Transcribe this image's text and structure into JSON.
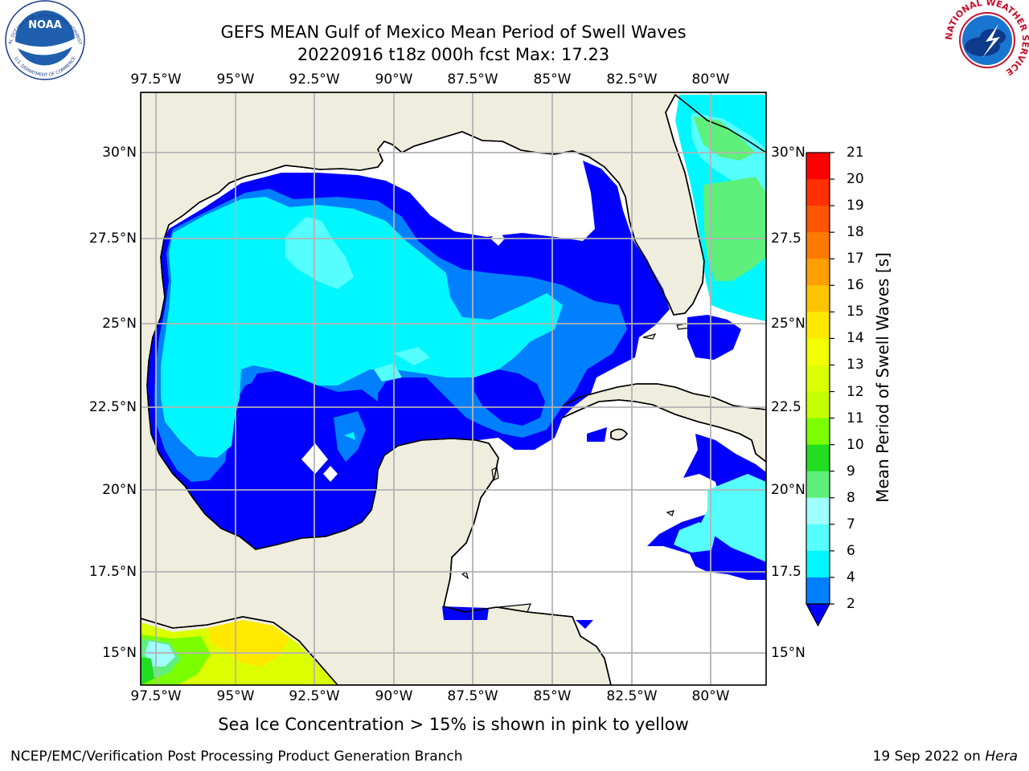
{
  "title": {
    "line1": "GEFS MEAN Gulf of Mexico Mean Period of Swell Waves",
    "line2": "20220916 t18z 000h fcst   Max: 17.23"
  },
  "map": {
    "lon_ticks": [
      "97.5°W",
      "95°W",
      "92.5°W",
      "90°W",
      "87.5°W",
      "85°W",
      "82.5°W",
      "80°W"
    ],
    "lat_ticks_left": [
      "30°N",
      "27.5°N",
      "25°N",
      "22.5°N",
      "20°N",
      "17.5°N",
      "15°N"
    ],
    "lat_ticks_right": [
      "30°N",
      "27.5",
      "25°N",
      "22.5",
      "20°N",
      "17.5",
      "15°N"
    ],
    "land_color": "#efedde",
    "ocean_nodata_color": "#ffffff",
    "gridline_color": "#b3b3b3"
  },
  "colorbar": {
    "label": "Mean Period of Swell Waves [s]",
    "ticks": [
      "21",
      "20",
      "19",
      "18",
      "17",
      "16",
      "15",
      "14",
      "13",
      "12",
      "11",
      "10",
      "9",
      "8",
      "7",
      "6",
      "4",
      "2"
    ],
    "colors": [
      "#ff0000",
      "#ff2f00",
      "#ff5500",
      "#ff7a00",
      "#ff9f00",
      "#ffc400",
      "#ffe900",
      "#f3ff00",
      "#dcff00",
      "#c4ff00",
      "#7bff00",
      "#22dd22",
      "#5ef07a",
      "#a0ffff",
      "#55ffff",
      "#00f7ff",
      "#0080ff",
      "#0000ff"
    ],
    "extend_color": "#0000ff"
  },
  "footnote": "Sea Ice Concentration > 15% is shown in pink to yellow",
  "credits": {
    "left": "NCEP/EMC/Verification Post Processing Product Generation Branch",
    "right_date": "19 Sep 2022 on",
    "right_host": "Hera"
  },
  "logos": {
    "noaa_text": "NOAA",
    "noaa_ring_top": "NATIONAL OCEANIC AND ATMOSPHERIC ADMINISTRATION",
    "noaa_ring_bottom": "U.S. DEPARTMENT OF COMMERCE",
    "nws_ring": "NATIONAL WEATHER SERVICE"
  }
}
